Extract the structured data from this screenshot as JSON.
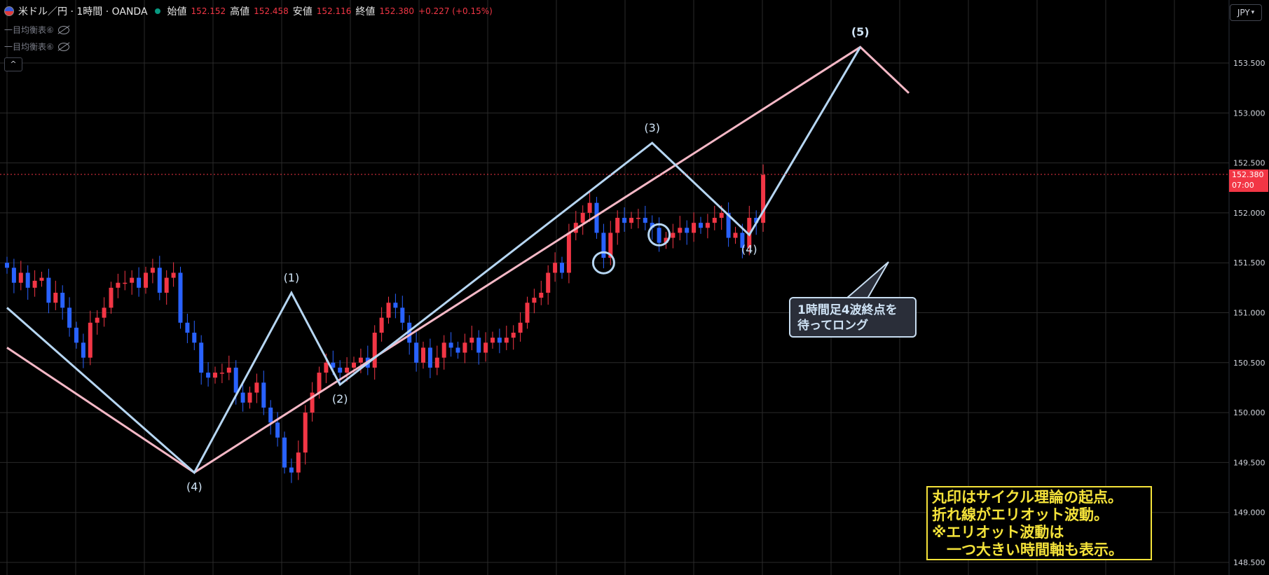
{
  "header": {
    "symbol": "米ドル／円 · 1時間 · OANDA",
    "open_label": "始値",
    "open": "152.152",
    "high_label": "高値",
    "high": "152.458",
    "low_label": "安値",
    "low": "152.116",
    "close_label": "終値",
    "close": "152.380",
    "change": "+0.227 (+0.15%)"
  },
  "indicators": [
    "一目均衡表⑥",
    "一目均衡表⑥"
  ],
  "currency_button": "JPY",
  "collapse_icon": "chevron-up-icon",
  "price_tag": {
    "price": "152.380",
    "countdown": "07:00"
  },
  "note": {
    "line1": "1時間足4波終点を",
    "line2": "待ってロング"
  },
  "yellow_note": {
    "line1": "丸印はサイクル理論の起点。",
    "line2": "折れ線がエリオット波動。",
    "line3": "※エリオット波動は",
    "line4": "　一つ大きい時間軸も表示。"
  },
  "colors": {
    "bull": "#f23645",
    "bear": "#2962ff",
    "wave_blue": "#b6d6f2",
    "wave_pink": "#f5b8c6",
    "grid": "#2a2a2a",
    "yellow": "#f5e33a"
  },
  "chart_data": {
    "type": "candlestick",
    "symbol": "USDJPY",
    "timeframe": "1H",
    "y_ticks": [
      148.5,
      149.0,
      149.5,
      150.0,
      150.5,
      151.0,
      151.5,
      152.0,
      152.5,
      153.0,
      153.5
    ],
    "y_tick_labels": [
      "148.500",
      "149.000",
      "149.500",
      "150.000",
      "150.500",
      "151.000",
      "151.500",
      "152.000",
      "152.500",
      "153.000",
      "153.500"
    ],
    "ylim": [
      148.4,
      154.3
    ],
    "last_price": 152.38,
    "num_bars": 110,
    "candles_close": [
      151.45,
      151.3,
      151.4,
      151.25,
      151.32,
      151.35,
      151.1,
      151.2,
      151.05,
      150.85,
      150.7,
      150.55,
      150.9,
      150.95,
      151.05,
      151.25,
      151.3,
      151.3,
      151.35,
      151.25,
      151.4,
      151.45,
      151.2,
      151.35,
      151.4,
      150.9,
      150.8,
      150.7,
      150.4,
      150.35,
      150.4,
      150.4,
      150.45,
      150.2,
      150.1,
      150.2,
      150.3,
      150.05,
      149.9,
      149.75,
      149.45,
      149.4,
      149.6,
      150.0,
      150.2,
      150.4,
      150.5,
      150.45,
      150.4,
      150.45,
      150.5,
      150.55,
      150.45,
      150.8,
      150.95,
      151.1,
      151.05,
      150.9,
      150.7,
      150.5,
      150.65,
      150.45,
      150.55,
      150.7,
      150.65,
      150.6,
      150.7,
      150.75,
      150.6,
      150.7,
      150.75,
      150.7,
      150.75,
      150.8,
      150.9,
      151.1,
      151.15,
      151.2,
      151.4,
      151.5,
      151.4,
      151.8,
      151.9,
      152.0,
      152.1,
      151.8,
      151.55,
      151.8,
      151.95,
      151.9,
      151.95,
      151.95,
      151.9,
      151.85,
      151.7,
      151.75,
      151.8,
      151.85,
      151.8,
      151.9,
      151.85,
      151.9,
      151.95,
      152.0,
      151.75,
      151.8,
      151.65,
      151.95,
      151.9,
      152.38
    ],
    "waves": {
      "blue": {
        "labels": [
          "(4)",
          "(1)",
          "(2)",
          "(3)",
          "(4)",
          "(5)"
        ],
        "points": [
          [
            0,
            151.05
          ],
          [
            27,
            149.4
          ],
          [
            41,
            151.2
          ],
          [
            48,
            150.28
          ],
          [
            93,
            152.7
          ],
          [
            107,
            151.78
          ],
          [
            123,
            153.66
          ]
        ]
      },
      "pink": {
        "labels": [],
        "points": [
          [
            0,
            150.65
          ],
          [
            27,
            149.4
          ],
          [
            123,
            153.66
          ],
          [
            130,
            153.2
          ]
        ]
      }
    },
    "cycle_markers": [
      [
        86,
        151.5
      ],
      [
        94,
        151.78
      ]
    ]
  }
}
